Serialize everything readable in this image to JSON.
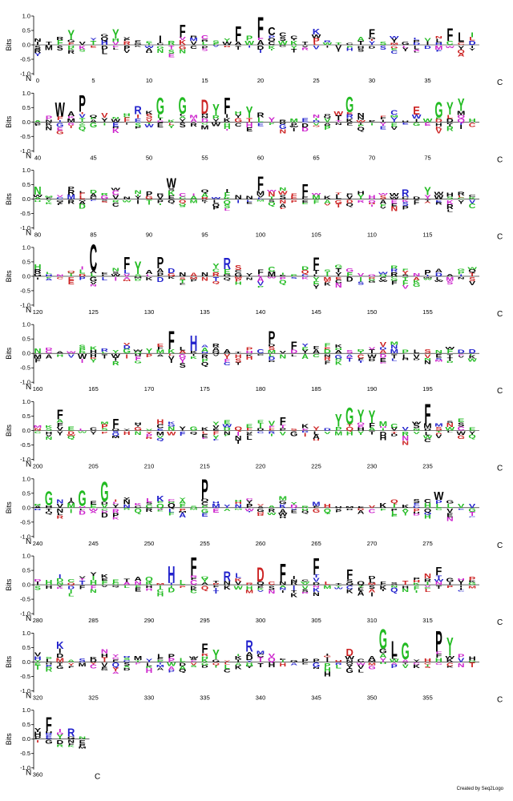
{
  "chart_data": {
    "type": "sequence-logo",
    "ylabel": "Bits",
    "ylim": [
      -1.0,
      1.0
    ],
    "yticks": [
      "1.0",
      "0.5",
      "0.0",
      "-0.5",
      "-1.0"
    ],
    "terminal_start": "N",
    "terminal_end": "C",
    "positions_per_row": 40,
    "total_positions": 365,
    "index_start": 0,
    "tick_interval": 5,
    "colors": {
      "hydrophobic": "#000000",
      "polar": "#22bb22",
      "basic": "#2222cc",
      "acidic": "#cc2222",
      "other": "#cc22cc"
    },
    "highlights": [
      {
        "pos": 3,
        "letter": "Y",
        "height": 0.35,
        "color": "#22bb22"
      },
      {
        "pos": 7,
        "letter": "Y",
        "height": 0.35,
        "color": "#22bb22"
      },
      {
        "pos": 11,
        "letter": "I",
        "height": 0.25,
        "color": "#000000"
      },
      {
        "pos": 13,
        "letter": "F",
        "height": 0.45,
        "color": "#000000"
      },
      {
        "pos": 18,
        "letter": "F",
        "height": 0.55,
        "color": "#000000"
      },
      {
        "pos": 20,
        "letter": "F",
        "height": 0.75,
        "color": "#000000"
      },
      {
        "pos": 21,
        "letter": "C",
        "height": 0.3,
        "color": "#000000"
      },
      {
        "pos": 25,
        "letter": "K",
        "height": 0.2,
        "color": "#2222cc"
      },
      {
        "pos": 30,
        "letter": "F",
        "height": 0.3,
        "color": "#000000"
      },
      {
        "pos": 37,
        "letter": "F",
        "height": 0.45,
        "color": "#000000"
      },
      {
        "pos": 38,
        "letter": "L",
        "height": 0.35,
        "color": "#000000"
      },
      {
        "pos": 42,
        "letter": "W",
        "height": 0.5,
        "color": "#000000"
      },
      {
        "pos": 44,
        "letter": "P",
        "height": 0.6,
        "color": "#000000"
      },
      {
        "pos": 49,
        "letter": "R",
        "height": 0.3,
        "color": "#2222cc"
      },
      {
        "pos": 51,
        "letter": "G",
        "height": 0.6,
        "color": "#22bb22"
      },
      {
        "pos": 53,
        "letter": "G",
        "height": 0.6,
        "color": "#22bb22"
      },
      {
        "pos": 55,
        "letter": "D",
        "height": 0.5,
        "color": "#cc2222"
      },
      {
        "pos": 56,
        "letter": "Y",
        "height": 0.4,
        "color": "#22bb22"
      },
      {
        "pos": 57,
        "letter": "F",
        "height": 0.6,
        "color": "#000000"
      },
      {
        "pos": 59,
        "letter": "Y",
        "height": 0.4,
        "color": "#22bb22"
      },
      {
        "pos": 68,
        "letter": "G",
        "height": 0.55,
        "color": "#22bb22"
      },
      {
        "pos": 74,
        "letter": "E",
        "height": 0.3,
        "color": "#cc2222"
      },
      {
        "pos": 76,
        "letter": "G",
        "height": 0.55,
        "color": "#22bb22"
      },
      {
        "pos": 77,
        "letter": "Y",
        "height": 0.45,
        "color": "#22bb22"
      },
      {
        "pos": 78,
        "letter": "Y",
        "height": 0.45,
        "color": "#22bb22"
      },
      {
        "pos": 80,
        "letter": "N",
        "height": 0.3,
        "color": "#22bb22"
      },
      {
        "pos": 92,
        "letter": "W",
        "height": 0.35,
        "color": "#000000"
      },
      {
        "pos": 100,
        "letter": "F",
        "height": 0.5,
        "color": "#000000"
      },
      {
        "pos": 104,
        "letter": "F",
        "height": 0.45,
        "color": "#000000"
      },
      {
        "pos": 113,
        "letter": "R",
        "height": 0.25,
        "color": "#2222cc"
      },
      {
        "pos": 115,
        "letter": "Y",
        "height": 0.3,
        "color": "#22bb22"
      },
      {
        "pos": 125,
        "letter": "C",
        "height": 0.95,
        "color": "#000000"
      },
      {
        "pos": 128,
        "letter": "F",
        "height": 0.45,
        "color": "#000000"
      },
      {
        "pos": 129,
        "letter": "Y",
        "height": 0.45,
        "color": "#22bb22"
      },
      {
        "pos": 131,
        "letter": "P",
        "height": 0.4,
        "color": "#000000"
      },
      {
        "pos": 137,
        "letter": "R",
        "height": 0.4,
        "color": "#2222cc"
      },
      {
        "pos": 145,
        "letter": "F",
        "height": 0.45,
        "color": "#000000"
      },
      {
        "pos": 172,
        "letter": "F",
        "height": 0.65,
        "color": "#000000"
      },
      {
        "pos": 174,
        "letter": "H",
        "height": 0.55,
        "color": "#2222cc"
      },
      {
        "pos": 181,
        "letter": "P",
        "height": 0.45,
        "color": "#000000"
      },
      {
        "pos": 183,
        "letter": "F",
        "height": 0.3,
        "color": "#000000"
      },
      {
        "pos": 202,
        "letter": "F",
        "height": 0.35,
        "color": "#000000"
      },
      {
        "pos": 207,
        "letter": "F",
        "height": 0.35,
        "color": "#000000"
      },
      {
        "pos": 222,
        "letter": "F",
        "height": 0.3,
        "color": "#000000"
      },
      {
        "pos": 227,
        "letter": "Y",
        "height": 0.45,
        "color": "#22bb22"
      },
      {
        "pos": 228,
        "letter": "G",
        "height": 0.6,
        "color": "#22bb22"
      },
      {
        "pos": 229,
        "letter": "Y",
        "height": 0.45,
        "color": "#22bb22"
      },
      {
        "pos": 230,
        "letter": "Y",
        "height": 0.45,
        "color": "#22bb22"
      },
      {
        "pos": 235,
        "letter": "F",
        "height": 0.7,
        "color": "#000000"
      },
      {
        "pos": 241,
        "letter": "G",
        "height": 0.5,
        "color": "#22bb22"
      },
      {
        "pos": 244,
        "letter": "G",
        "height": 0.55,
        "color": "#22bb22"
      },
      {
        "pos": 246,
        "letter": "G",
        "height": 0.7,
        "color": "#22bb22"
      },
      {
        "pos": 251,
        "letter": "K",
        "height": 0.2,
        "color": "#2222cc"
      },
      {
        "pos": 255,
        "letter": "P",
        "height": 0.7,
        "color": "#000000"
      },
      {
        "pos": 276,
        "letter": "W",
        "height": 0.3,
        "color": "#000000"
      },
      {
        "pos": 292,
        "letter": "H",
        "height": 0.6,
        "color": "#2222cc"
      },
      {
        "pos": 294,
        "letter": "F",
        "height": 0.65,
        "color": "#000000"
      },
      {
        "pos": 297,
        "letter": "R",
        "height": 0.35,
        "color": "#2222cc"
      },
      {
        "pos": 300,
        "letter": "D",
        "height": 0.5,
        "color": "#cc2222"
      },
      {
        "pos": 302,
        "letter": "F",
        "height": 0.65,
        "color": "#000000"
      },
      {
        "pos": 305,
        "letter": "F",
        "height": 0.6,
        "color": "#000000"
      },
      {
        "pos": 308,
        "letter": "F",
        "height": 0.35,
        "color": "#000000"
      },
      {
        "pos": 316,
        "letter": "F",
        "height": 0.3,
        "color": "#000000"
      },
      {
        "pos": 322,
        "letter": "K",
        "height": 0.25,
        "color": "#2222cc"
      },
      {
        "pos": 335,
        "letter": "F",
        "height": 0.35,
        "color": "#000000"
      },
      {
        "pos": 336,
        "letter": "Y",
        "height": 0.35,
        "color": "#22bb22"
      },
      {
        "pos": 339,
        "letter": "R",
        "height": 0.4,
        "color": "#2222cc"
      },
      {
        "pos": 348,
        "letter": "D",
        "height": 0.25,
        "color": "#cc2222"
      },
      {
        "pos": 351,
        "letter": "G",
        "height": 0.7,
        "color": "#22bb22"
      },
      {
        "pos": 352,
        "letter": "L",
        "height": 0.55,
        "color": "#000000"
      },
      {
        "pos": 353,
        "letter": "G",
        "height": 0.6,
        "color": "#22bb22"
      },
      {
        "pos": 356,
        "letter": "P",
        "height": 0.75,
        "color": "#000000"
      },
      {
        "pos": 357,
        "letter": "Y",
        "height": 0.5,
        "color": "#22bb22"
      },
      {
        "pos": 361,
        "letter": "F",
        "height": 0.5,
        "color": "#000000"
      },
      {
        "pos": 363,
        "letter": "R",
        "height": 0.3,
        "color": "#2222cc"
      }
    ]
  },
  "credit": "Created by Seq2Logo"
}
